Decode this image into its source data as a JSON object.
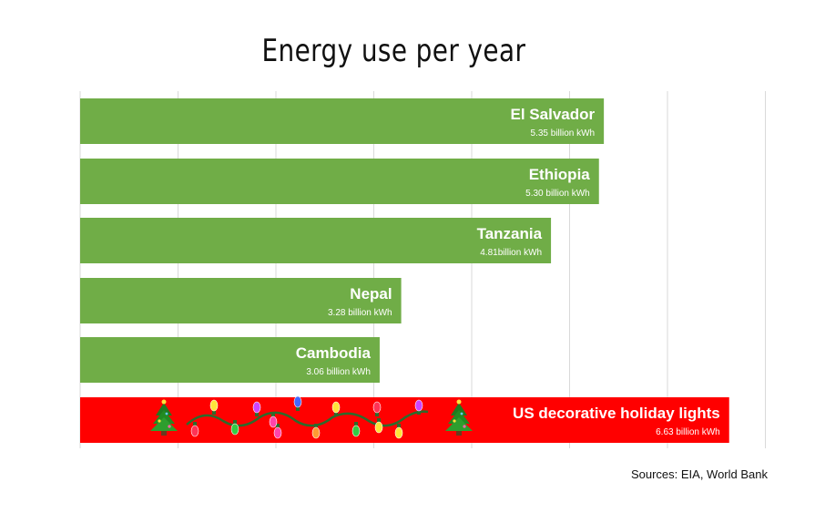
{
  "chart_data": {
    "type": "bar",
    "orientation": "horizontal",
    "title": "Energy use per year",
    "unit": "billion kWh",
    "xlim": [
      0,
      7
    ],
    "grid": true,
    "categories": [
      "El Salvador",
      "Ethiopia",
      "Tanzania",
      "Nepal",
      "Cambodia",
      "US decorative holiday lights"
    ],
    "values": [
      5.35,
      5.3,
      4.81,
      3.28,
      3.06,
      6.63
    ],
    "value_labels": [
      "5.35 billion kWh",
      "5.30 billion kWh",
      "4.81billion kWh",
      "3.28 billion kWh",
      "3.06 billion kWh",
      "6.63 billion kWh"
    ],
    "colors": [
      "#70ad47",
      "#70ad47",
      "#70ad47",
      "#70ad47",
      "#70ad47",
      "#ff0000"
    ],
    "grid_color": "#d9d9d9",
    "source": "Sources: EIA, World Bank"
  },
  "decorations": {
    "icons": [
      "christmas-tree-icon",
      "string-lights-icon",
      "christmas-tree-icon"
    ],
    "bulb_colors": [
      "#ff3355",
      "#ffe23a",
      "#33cc44",
      "#cc44ff",
      "#ff44aa",
      "#4466ff",
      "#ff9933",
      "#ffe23a",
      "#33cc44",
      "#ff3355",
      "#ffe23a",
      "#cc44ff",
      "#ff44aa",
      "#ffe23a"
    ]
  }
}
